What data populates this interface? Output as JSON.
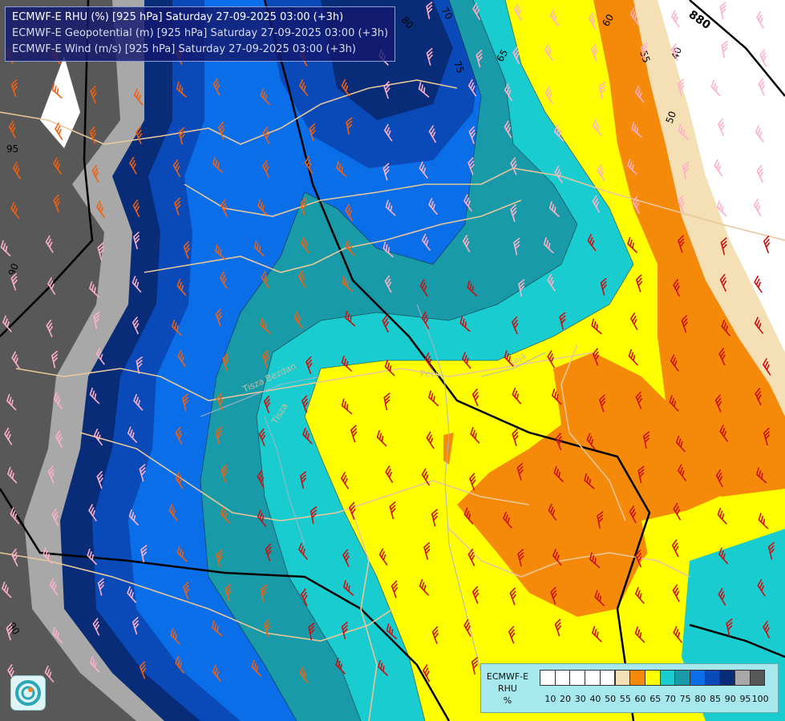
{
  "header": {
    "line1": "ECMWF-E RHU (%) [925 hPa] Saturday 27-09-2025 03:00 (+3h)",
    "line2": "ECMWF-E Geopotential (m) [925 hPa] Saturday 27-09-2025 03:00 (+3h)",
    "line3": "ECMWF-E Wind (m/s) [925 hPa] Saturday 27-09-2025 03:00 (+3h)"
  },
  "legend": {
    "model": "ECMWF-E",
    "variable": "RHU",
    "unit": "%",
    "ticks": [
      "10",
      "20",
      "30",
      "40",
      "50",
      "55",
      "60",
      "65",
      "70",
      "75",
      "80",
      "85",
      "90",
      "95",
      "100"
    ],
    "colors": [
      "#ffffff",
      "#ffffff",
      "#ffffff",
      "#ffffff",
      "#ffffff",
      "#f5dfb5",
      "#f58a0a",
      "#ffff00",
      "#18ccd0",
      "#189aa8",
      "#0a6ee8",
      "#0a4ab8",
      "#082c78",
      "#a8a8a8",
      "#585858"
    ]
  },
  "map_labels": {
    "contour_labels": [
      "95",
      "90",
      "90",
      "80",
      "75",
      "70",
      "65",
      "60",
      "55",
      "50",
      "40"
    ],
    "geopotential_label": "880",
    "places": [
      "Pécs",
      "Baja",
      "Tisza",
      "Tisza Bezdan"
    ]
  },
  "colors": {
    "rh_100": "#585858",
    "rh_95": "#a8a8a8",
    "rh_90": "#082c78",
    "rh_85": "#0a4ab8",
    "rh_80": "#0a6ee8",
    "rh_75": "#189aa8",
    "rh_70": "#18ccd0",
    "rh_65": "#ffff00",
    "rh_60": "#f58a0a",
    "rh_55": "#f5dfb5",
    "rh_low": "#ffffff",
    "geopotential_line": "#000000",
    "border_line": "#e8c89a",
    "barb_red": "#cc1010",
    "barb_orange": "#f06010",
    "barb_pink": "#ffb0c8",
    "header_bg": "#14186e"
  }
}
